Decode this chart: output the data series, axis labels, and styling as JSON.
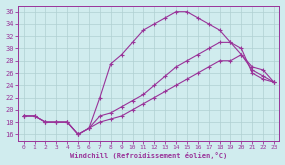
{
  "xlabel": "Windchill (Refroidissement éolien,°C)",
  "xlim": [
    -0.5,
    23.5
  ],
  "ylim": [
    15,
    37
  ],
  "yticks": [
    16,
    18,
    20,
    22,
    24,
    26,
    28,
    30,
    32,
    34,
    36
  ],
  "xticks": [
    0,
    1,
    2,
    3,
    4,
    5,
    6,
    7,
    8,
    9,
    10,
    11,
    12,
    13,
    14,
    15,
    16,
    17,
    18,
    19,
    20,
    21,
    22,
    23
  ],
  "bg_color": "#d0ecee",
  "grid_color": "#b0d0d2",
  "line_color": "#993399",
  "line1_x": [
    0,
    1,
    2,
    3,
    4,
    5,
    6,
    7,
    8,
    9,
    10,
    11,
    12,
    13,
    14,
    15,
    16,
    17,
    18,
    19,
    20,
    21,
    22,
    23
  ],
  "line1_y": [
    19,
    19,
    18,
    18,
    18,
    16,
    17,
    22,
    27.5,
    29,
    31,
    33,
    34,
    35,
    36,
    36,
    35,
    34,
    33,
    31,
    30,
    26,
    25,
    24.5
  ],
  "line2_x": [
    0,
    1,
    2,
    3,
    4,
    5,
    6,
    7,
    8,
    9,
    10,
    11,
    12,
    13,
    14,
    15,
    16,
    17,
    18,
    19,
    20,
    21,
    22,
    23
  ],
  "line2_y": [
    19,
    19,
    18,
    18,
    18,
    16,
    17,
    19,
    19.5,
    20.5,
    21.5,
    22.5,
    24,
    25.5,
    27,
    28,
    29,
    30,
    31,
    31,
    29,
    26.5,
    25.5,
    24.5
  ],
  "line3_x": [
    0,
    1,
    2,
    3,
    4,
    5,
    6,
    7,
    8,
    9,
    10,
    11,
    12,
    13,
    14,
    15,
    16,
    17,
    18,
    19,
    20,
    21,
    22,
    23
  ],
  "line3_y": [
    19,
    19,
    18,
    18,
    18,
    16,
    17,
    18,
    18.5,
    19,
    20,
    21,
    22,
    23,
    24,
    25,
    26,
    27,
    28,
    28,
    29,
    27,
    26.5,
    24.5
  ]
}
